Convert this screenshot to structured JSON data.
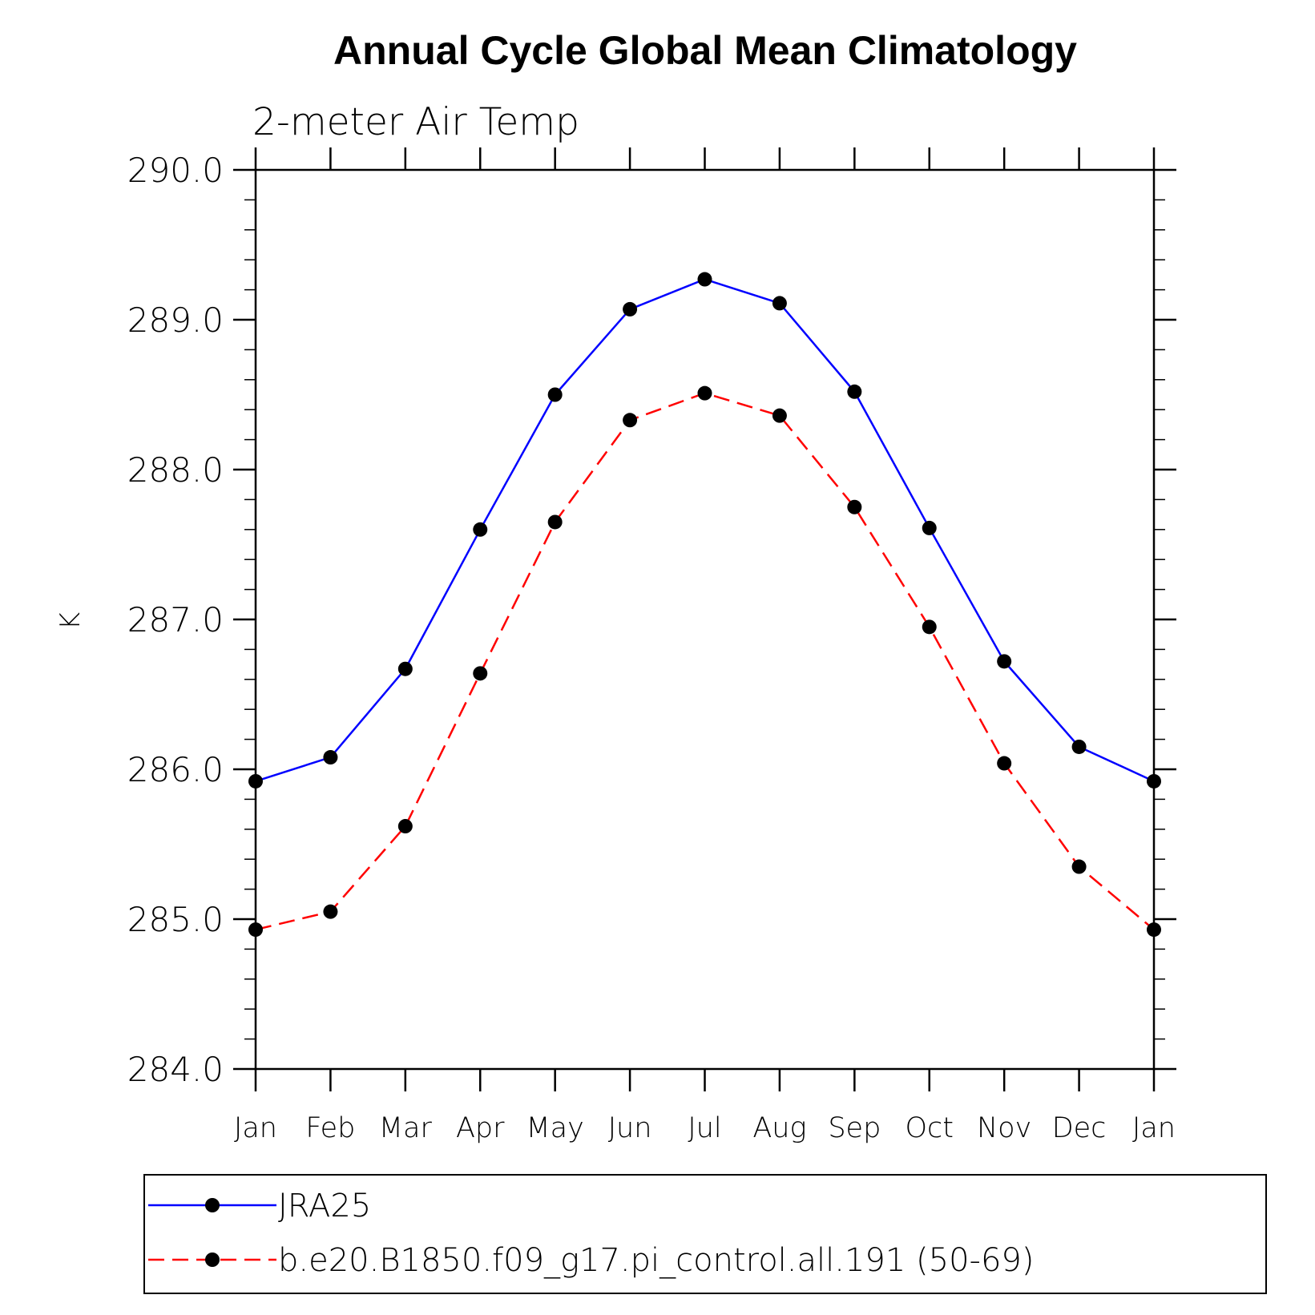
{
  "chart_data": {
    "type": "line",
    "title": "Annual Cycle Global Mean Climatology",
    "subtitle": "2-meter Air Temp",
    "xlabel": "",
    "ylabel": "K",
    "categories": [
      "Jan",
      "Feb",
      "Mar",
      "Apr",
      "May",
      "Jun",
      "Jul",
      "Aug",
      "Sep",
      "Oct",
      "Nov",
      "Dec",
      "Jan"
    ],
    "ylim": [
      284.0,
      290.0
    ],
    "yticks": [
      284.0,
      285.0,
      286.0,
      287.0,
      288.0,
      289.0,
      290.0
    ],
    "ytick_labels": [
      "284.0",
      "285.0",
      "286.0",
      "287.0",
      "288.0",
      "289.0",
      "290.0"
    ],
    "grid": false,
    "legend_position": "bottom",
    "series": [
      {
        "name": "JRA25",
        "color": "#0000ff",
        "style": "solid",
        "marker": "filled-circle",
        "values": [
          285.92,
          286.08,
          286.67,
          287.6,
          288.5,
          289.07,
          289.27,
          289.11,
          288.52,
          287.61,
          286.72,
          286.15,
          285.92
        ]
      },
      {
        "name": "b.e20.B1850.f09_g17.pi_control.all.191 (50-69)",
        "color": "#ff0000",
        "style": "dashed",
        "marker": "filled-circle",
        "values": [
          284.93,
          285.05,
          285.62,
          286.64,
          287.65,
          288.33,
          288.51,
          288.36,
          287.75,
          286.95,
          286.04,
          285.35,
          284.93
        ]
      }
    ]
  }
}
